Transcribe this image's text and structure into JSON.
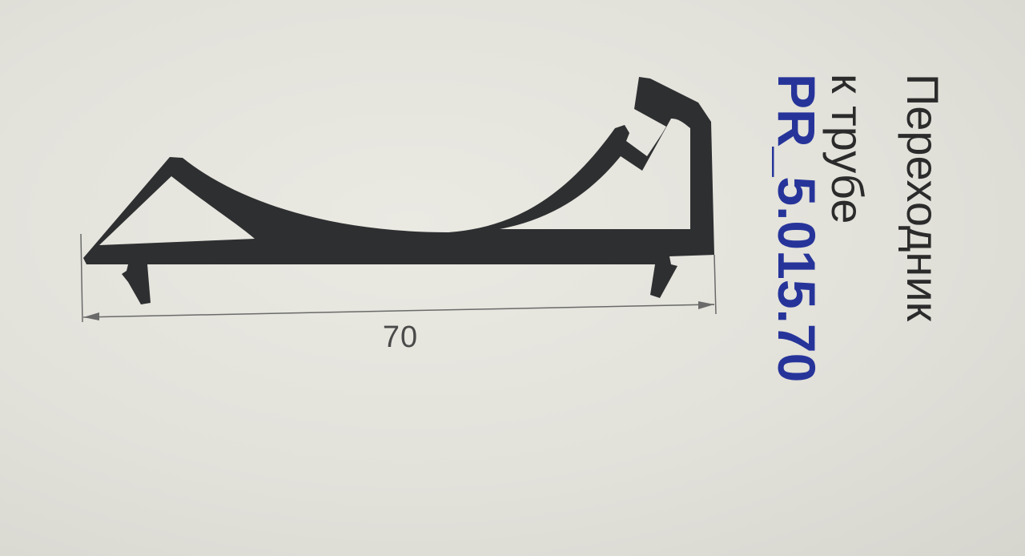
{
  "dimension": {
    "value": "70"
  },
  "profile": {
    "name_line1": "Переходник",
    "name_line2": "к трубе",
    "code": "PR_5.015.70"
  },
  "colors": {
    "profile_fill": "#2e2f31",
    "dimension_line": "#6a6a6a",
    "code_text": "#26349a",
    "name_text": "#2b2b2b",
    "background": "#e3e2db"
  }
}
